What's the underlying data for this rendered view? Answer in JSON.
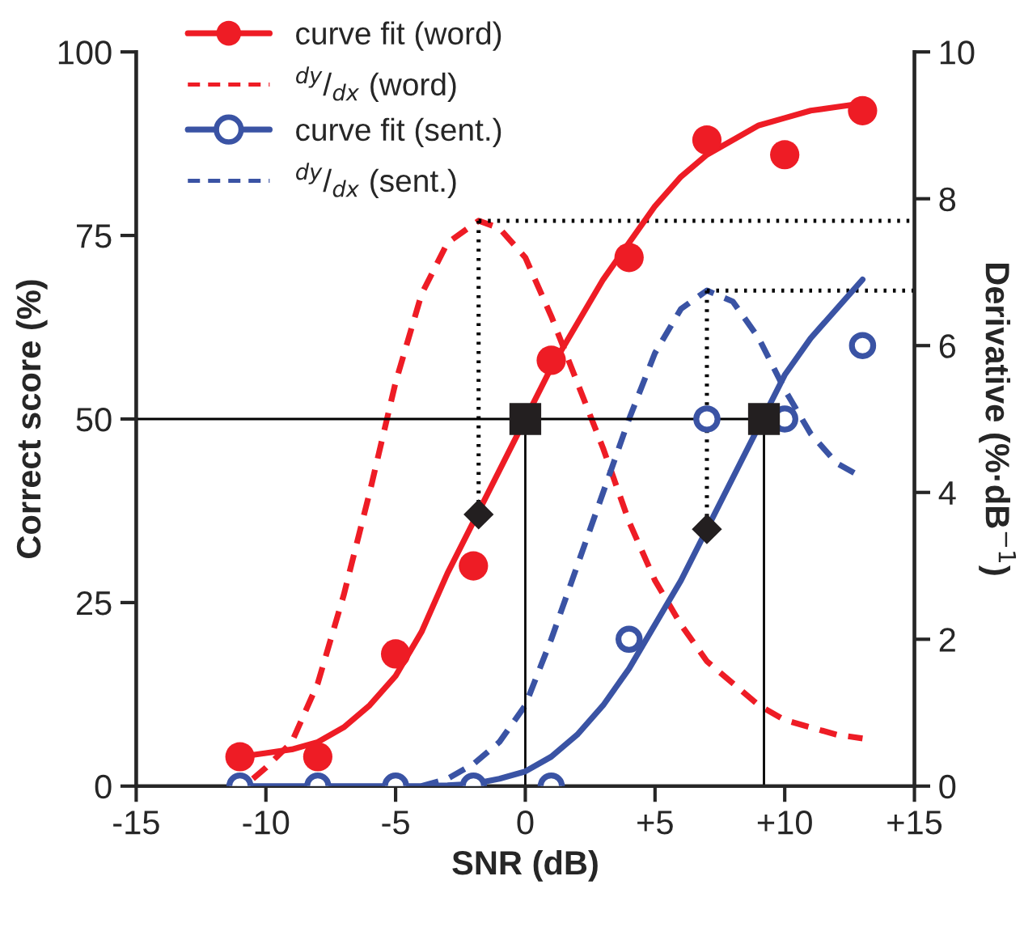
{
  "chart_data": {
    "type": "line",
    "xlabel": "SNR (dB)",
    "ylabel": "Correct score (%)",
    "y2label": "Derivative (%·dB$^{−1}$)",
    "xlim": [
      -15,
      15
    ],
    "xticks": [
      -15,
      -10,
      -5,
      0,
      {
        "value": 5,
        "label": "+5"
      },
      {
        "value": 10,
        "label": "+10"
      },
      {
        "value": 15,
        "label": "+15"
      }
    ],
    "ylim": [
      0,
      100
    ],
    "yticks": [
      0,
      25,
      50,
      75,
      100
    ],
    "y2lim": [
      0,
      10
    ],
    "y2ticks": [
      0,
      2,
      4,
      6,
      8,
      10
    ],
    "grid": false,
    "legend": "top left",
    "series": [
      {
        "color": "#000000",
        "line_style": "solid",
        "x": [
          -15,
          9.2
        ],
        "values": [
          50,
          50
        ]
      },
      {
        "color": "#000000",
        "line_style": "solid",
        "x": [
          0,
          0
        ],
        "values": [
          0,
          50
        ]
      },
      {
        "color": "#000000",
        "line_style": "solid",
        "x": [
          9.2,
          9.2
        ],
        "values": [
          0,
          50
        ]
      },
      {
        "color": "#000000",
        "line_style": "dotted",
        "axis": "y2",
        "x": [
          -1.8,
          15
        ],
        "values": [
          7.7,
          7.7
        ]
      },
      {
        "color": "#000000",
        "line_style": "dotted",
        "axis": "y2",
        "x": [
          7,
          15
        ],
        "values": [
          6.75,
          6.75
        ]
      },
      {
        "color": "#000000",
        "line_style": "dotted",
        "axis": "y2",
        "x": [
          -1.8,
          -1.8
        ],
        "values": [
          7.7,
          3.7
        ]
      },
      {
        "color": "#000000",
        "line_style": "dotted",
        "axis": "y2",
        "x": [
          7,
          7
        ],
        "values": [
          6.75,
          3.5
        ]
      },
      {
        "name": "curve fit (word)",
        "color": "#ee1c25",
        "line_style": "solid",
        "x": [
          -11,
          -10,
          -9,
          -8,
          -7,
          -6,
          -5,
          -4,
          -3,
          -2,
          -1,
          1,
          2,
          3,
          4,
          5,
          6,
          7,
          8,
          9,
          10,
          11,
          12,
          13
        ],
        "values": [
          4,
          4.5,
          5,
          6,
          8,
          11,
          15,
          21,
          29,
          36,
          43,
          57,
          63,
          69,
          74,
          79,
          83,
          86,
          88,
          90,
          91,
          92,
          92.5,
          93
        ]
      },
      {
        "name": "$^{dy}$/$_{dx}$ (word)",
        "color": "#ee1c25",
        "line_style": "dashed",
        "axis": "y2",
        "x": [
          -10.5,
          -10,
          -9,
          -8,
          -7,
          -6,
          -5,
          -4,
          -3,
          -1.8,
          -1,
          0,
          1,
          2,
          3,
          4,
          5,
          6,
          7,
          8,
          9,
          10,
          11,
          12,
          13
        ],
        "values": [
          0.1,
          0.25,
          0.6,
          1.4,
          2.6,
          4.0,
          5.5,
          6.7,
          7.4,
          7.7,
          7.6,
          7.2,
          6.4,
          5.5,
          4.6,
          3.6,
          2.8,
          2.2,
          1.7,
          1.4,
          1.1,
          0.9,
          0.8,
          0.7,
          0.65
        ]
      },
      {
        "name": "curve fit (sent.)",
        "color": "#3a53a4",
        "line_style": "solid",
        "x": [
          -11,
          -6,
          -4,
          -3,
          -2,
          -1,
          0,
          1,
          2,
          3,
          4,
          5,
          6,
          7,
          8,
          10,
          11,
          12,
          13
        ],
        "values": [
          0,
          0,
          0,
          0.1,
          0.3,
          1,
          2,
          4,
          7,
          11,
          16,
          22,
          28,
          35,
          42,
          56,
          61,
          65,
          69
        ]
      },
      {
        "name": "$^{dy}$/$_{dx}$ (sent.)",
        "color": "#3a53a4",
        "line_style": "dashed",
        "axis": "y2",
        "x": [
          -4,
          -3,
          -2,
          -1,
          0,
          1,
          2,
          3,
          4,
          5,
          6,
          7,
          8,
          9,
          10,
          11,
          12,
          13
        ],
        "values": [
          0,
          0.1,
          0.3,
          0.6,
          1.1,
          2.0,
          3.0,
          4.0,
          5.0,
          5.9,
          6.5,
          6.75,
          6.6,
          6.1,
          5.4,
          4.8,
          4.4,
          4.2
        ]
      },
      {
        "type": "scatter",
        "color": "#ee1c25",
        "marker": "circle",
        "x": [
          -11,
          -8,
          -5,
          -2,
          1,
          4,
          7,
          10,
          13
        ],
        "values": [
          4,
          4,
          18,
          30,
          58,
          72,
          88,
          86,
          92
        ]
      },
      {
        "type": "scatter",
        "color": "#3a53a4",
        "marker": "circle",
        "x": [
          -11,
          -8,
          -5,
          -2,
          1,
          4,
          7,
          10,
          13
        ],
        "values": [
          0,
          0,
          0,
          0,
          0,
          20,
          50,
          50,
          60
        ]
      },
      {
        "type": "scatter",
        "color": "#231f20",
        "marker": "square",
        "x": [
          0,
          9.2
        ],
        "values": [
          50,
          50
        ]
      },
      {
        "type": "scatter",
        "color": "#231f20",
        "marker": "diamond",
        "x": [
          -1.8,
          7
        ],
        "values": [
          37,
          35
        ]
      }
    ]
  }
}
